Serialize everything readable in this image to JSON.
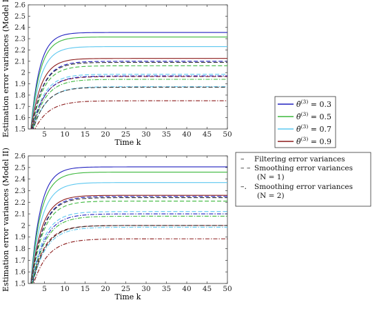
{
  "chart_data": [
    {
      "type": "line",
      "xlabel": "Time k",
      "ylabel": "Estimation error variances (Model I)",
      "xlim": [
        1,
        50
      ],
      "ylim": [
        1.5,
        2.6
      ],
      "xticks": [
        5,
        10,
        15,
        20,
        25,
        30,
        35,
        40,
        45,
        50
      ],
      "yticks": [
        1.5,
        1.6,
        1.7,
        1.8,
        1.9,
        2.0,
        2.1,
        2.2,
        2.3,
        2.4,
        2.5,
        2.6
      ],
      "ytick_labels": [
        "1.5",
        "1.6",
        "1.7",
        "1.8",
        "1.9",
        "2",
        "2.1",
        "2.2",
        "2.3",
        "2.4",
        "2.5",
        "2.6"
      ],
      "grid": false,
      "series": [
        {
          "name": "θ̄⁽³⁾ = 0.3",
          "color": "#1f1fbf",
          "style": "solid",
          "start": 1.45,
          "final": 2.355,
          "rate": 0.45
        },
        {
          "name": "θ̄⁽³⁾ = 0.5",
          "color": "#3cb83c",
          "style": "solid",
          "start": 1.45,
          "final": 2.315,
          "rate": 0.43
        },
        {
          "name": "θ̄⁽³⁾ = 0.7",
          "color": "#5cc8f0",
          "style": "solid",
          "start": 1.45,
          "final": 2.23,
          "rate": 0.41
        },
        {
          "name": "θ̄⁽³⁾ = 0.9",
          "color": "#8b1a1a",
          "style": "solid",
          "start": 1.45,
          "final": 2.125,
          "rate": 0.39
        },
        {
          "name": "θ̄⁽³⁾ = 0.3",
          "color": "#1f1fbf",
          "style": "dashed",
          "start": 1.42,
          "final": 2.1,
          "rate": 0.36
        },
        {
          "name": "θ̄⁽³⁾ = 0.5",
          "color": "#3cb83c",
          "style": "dashed",
          "start": 1.42,
          "final": 2.06,
          "rate": 0.35
        },
        {
          "name": "θ̄⁽³⁾ = 0.7",
          "color": "#5cc8f0",
          "style": "dashed",
          "start": 1.42,
          "final": 1.985,
          "rate": 0.34
        },
        {
          "name": "θ̄⁽³⁾ = 0.9",
          "color": "#8b1a1a",
          "style": "dashed",
          "start": 1.42,
          "final": 1.965,
          "rate": 0.33
        },
        {
          "name": "θ̄⁽³⁾ = 0.3",
          "color": "#1f1fbf",
          "style": "dashdot",
          "start": 1.4,
          "final": 1.97,
          "rate": 0.33
        },
        {
          "name": "θ̄⁽³⁾ = 0.5",
          "color": "#3cb83c",
          "style": "dashdot",
          "start": 1.4,
          "final": 1.94,
          "rate": 0.32
        },
        {
          "name": "θ̄⁽³⁾ = 0.7",
          "color": "#5cc8f0",
          "style": "dashdot",
          "start": 1.4,
          "final": 1.875,
          "rate": 0.31
        },
        {
          "name": "θ̄⁽³⁾ = 0.9",
          "color": "#8b1a1a",
          "style": "dashdot",
          "start": 1.4,
          "final": 1.75,
          "rate": 0.29
        },
        {
          "name": "",
          "color": "#333333",
          "style": "dashed",
          "start": 1.42,
          "final": 2.09,
          "rate": 0.36
        },
        {
          "name": "",
          "color": "#333333",
          "style": "dashed",
          "start": 1.4,
          "final": 1.87,
          "rate": 0.32
        }
      ]
    },
    {
      "type": "line",
      "xlabel": "Time k",
      "ylabel": "Estimation error variances (Model II)",
      "xlim": [
        1,
        50
      ],
      "ylim": [
        1.5,
        2.6
      ],
      "xticks": [
        5,
        10,
        15,
        20,
        25,
        30,
        35,
        40,
        45,
        50
      ],
      "yticks": [
        1.5,
        1.6,
        1.7,
        1.8,
        1.9,
        2.0,
        2.1,
        2.2,
        2.3,
        2.4,
        2.5,
        2.6
      ],
      "ytick_labels": [
        "1.5",
        "1.6",
        "1.7",
        "1.8",
        "1.9",
        "2",
        "2.1",
        "2.2",
        "2.3",
        "2.4",
        "2.5",
        "2.6"
      ],
      "grid": false,
      "series": [
        {
          "name": "θ̄⁽³⁾ = 0.3",
          "color": "#1f1fbf",
          "style": "solid",
          "start": 1.45,
          "final": 2.505,
          "rate": 0.42
        },
        {
          "name": "θ̄⁽³⁾ = 0.5",
          "color": "#3cb83c",
          "style": "solid",
          "start": 1.45,
          "final": 2.46,
          "rate": 0.4
        },
        {
          "name": "θ̄⁽³⁾ = 0.7",
          "color": "#5cc8f0",
          "style": "solid",
          "start": 1.45,
          "final": 2.37,
          "rate": 0.38
        },
        {
          "name": "θ̄⁽³⁾ = 0.9",
          "color": "#8b1a1a",
          "style": "solid",
          "start": 1.45,
          "final": 2.26,
          "rate": 0.37
        },
        {
          "name": "θ̄⁽³⁾ = 0.3",
          "color": "#1f1fbf",
          "style": "dashed",
          "start": 1.42,
          "final": 2.25,
          "rate": 0.35
        },
        {
          "name": "θ̄⁽³⁾ = 0.5",
          "color": "#3cb83c",
          "style": "dashed",
          "start": 1.42,
          "final": 2.21,
          "rate": 0.34
        },
        {
          "name": "θ̄⁽³⁾ = 0.7",
          "color": "#5cc8f0",
          "style": "dashed",
          "start": 1.42,
          "final": 2.12,
          "rate": 0.33
        },
        {
          "name": "θ̄⁽³⁾ = 0.9",
          "color": "#8b1a1a",
          "style": "dashed",
          "start": 1.42,
          "final": 2.0,
          "rate": 0.32
        },
        {
          "name": "θ̄⁽³⁾ = 0.3",
          "color": "#1f1fbf",
          "style": "dashdot",
          "start": 1.4,
          "final": 2.1,
          "rate": 0.32
        },
        {
          "name": "θ̄⁽³⁾ = 0.5",
          "color": "#3cb83c",
          "style": "dashdot",
          "start": 1.4,
          "final": 2.08,
          "rate": 0.31
        },
        {
          "name": "θ̄⁽³⁾ = 0.7",
          "color": "#5cc8f0",
          "style": "dashdot",
          "start": 1.4,
          "final": 1.985,
          "rate": 0.3
        },
        {
          "name": "θ̄⁽³⁾ = 0.9",
          "color": "#8b1a1a",
          "style": "dashdot",
          "start": 1.4,
          "final": 1.885,
          "rate": 0.28
        },
        {
          "name": "",
          "color": "#333333",
          "style": "dashed",
          "start": 1.42,
          "final": 2.24,
          "rate": 0.35
        },
        {
          "name": "",
          "color": "#333333",
          "style": "dashed",
          "start": 1.4,
          "final": 2.0,
          "rate": 0.31
        }
      ]
    }
  ],
  "legend_colors": {
    "title_items": [
      {
        "label": "= 0.3",
        "color": "#1f1fbf"
      },
      {
        "label": "= 0.5",
        "color": "#3cb83c"
      },
      {
        "label": "= 0.7",
        "color": "#5cc8f0"
      },
      {
        "label": "= 0.9",
        "color": "#8b1a1a"
      }
    ]
  },
  "legend_styles": {
    "items": [
      {
        "marker": "–",
        "line1": "Filtering error variances",
        "line2": ""
      },
      {
        "marker": "– –",
        "line1": "Smoothing error variances",
        "line2": "(N = 1)"
      },
      {
        "marker": "–.",
        "line1": "Smoothing error variances",
        "line2": "(N = 2)"
      }
    ]
  }
}
